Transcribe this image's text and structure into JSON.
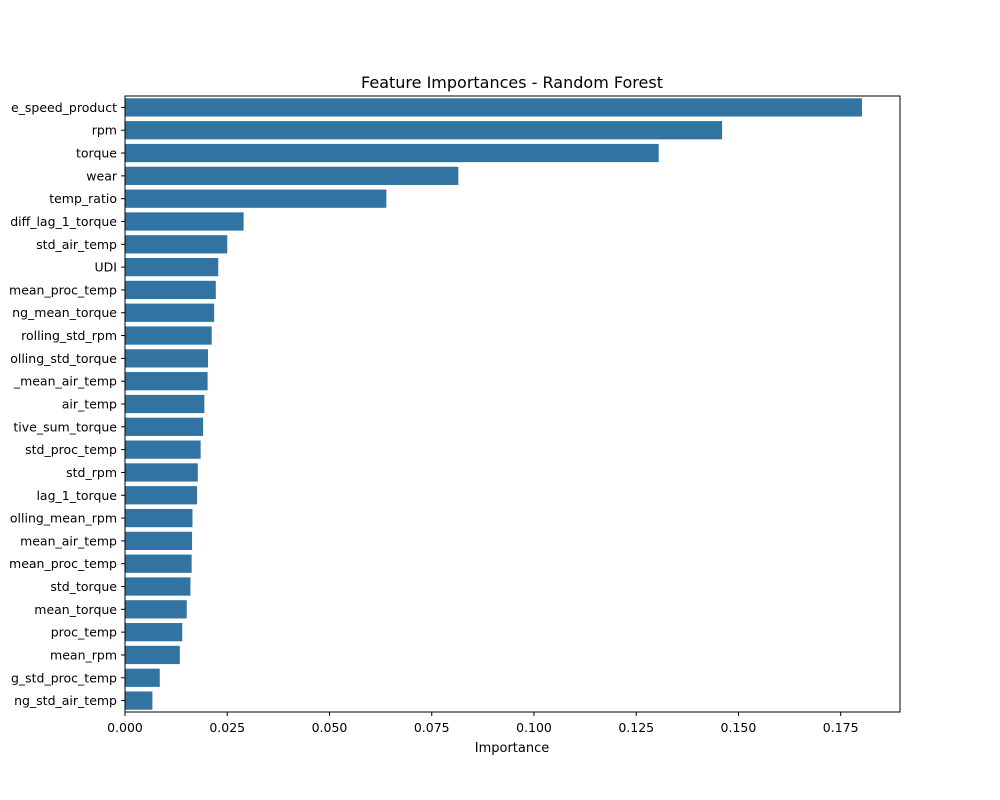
{
  "chart_data": {
    "type": "bar",
    "orientation": "horizontal",
    "title": "Feature Importances - Random Forest",
    "xlabel": "Importance",
    "ylabel": "",
    "xlim": [
      0,
      0.1895
    ],
    "xticks": [
      0.0,
      0.025,
      0.05,
      0.075,
      0.1,
      0.125,
      0.15,
      0.175
    ],
    "xtick_labels": [
      "0.000",
      "0.025",
      "0.050",
      "0.075",
      "0.100",
      "0.125",
      "0.150",
      "0.175"
    ],
    "bar_color": "#3274a1",
    "grid": false,
    "categories": [
      "e_speed_product",
      "rpm",
      "torque",
      "wear",
      "temp_ratio",
      "diff_lag_1_torque",
      "std_air_temp",
      "UDI",
      "mean_proc_temp",
      "ng_mean_torque",
      "rolling_std_rpm",
      "olling_std_torque",
      "_mean_air_temp",
      "air_temp",
      "tive_sum_torque",
      "std_proc_temp",
      "std_rpm",
      "lag_1_torque",
      "olling_mean_rpm",
      "mean_air_temp",
      "mean_proc_temp",
      "std_torque",
      "mean_torque",
      "proc_temp",
      "mean_rpm",
      "g_std_proc_temp",
      "ng_std_air_temp"
    ],
    "values": [
      0.1802,
      0.146,
      0.1305,
      0.0815,
      0.0639,
      0.029,
      0.025,
      0.0228,
      0.0222,
      0.0218,
      0.0212,
      0.0203,
      0.0202,
      0.0194,
      0.0191,
      0.0185,
      0.0178,
      0.0176,
      0.0165,
      0.0164,
      0.0163,
      0.016,
      0.0151,
      0.014,
      0.0134,
      0.0085,
      0.0067
    ]
  }
}
